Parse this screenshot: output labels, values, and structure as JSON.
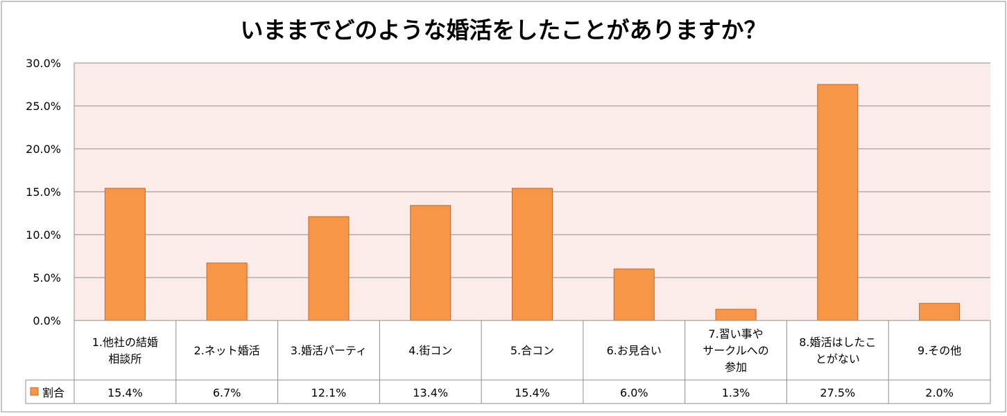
{
  "chart_data": {
    "type": "bar",
    "title": "いままでどのような婚活をしたことがありますか？",
    "categories": [
      [
        "1.他社の結婚",
        "相談所"
      ],
      [
        "2.ネット婚活"
      ],
      [
        "3.婚活パーティ"
      ],
      [
        "4.街コン"
      ],
      [
        "5.合コン"
      ],
      [
        "6.お見合い"
      ],
      [
        "7.習い事や",
        "サークルへの",
        "参加"
      ],
      [
        "8.婚活はしたこ",
        "とがない"
      ],
      [
        "9.その他"
      ]
    ],
    "series": [
      {
        "name": "割合",
        "values": [
          15.4,
          6.7,
          12.1,
          13.4,
          15.4,
          6.0,
          1.3,
          27.5,
          2.0
        ],
        "labels": [
          "15.4%",
          "6.7%",
          "12.1%",
          "13.4%",
          "15.4%",
          "6.0%",
          "1.3%",
          "27.5%",
          "2.0%"
        ]
      }
    ],
    "y_ticks": [
      "0.0%",
      "5.0%",
      "10.0%",
      "15.0%",
      "20.0%",
      "25.0%",
      "30.0%"
    ],
    "ylim": [
      0,
      30
    ],
    "grid": true,
    "legend": "data-table",
    "colors": {
      "bar": "#F79646",
      "bar_edge": "#C0682A",
      "plot_bg": "#FBECEA",
      "grid": "#8C8C8C"
    }
  }
}
